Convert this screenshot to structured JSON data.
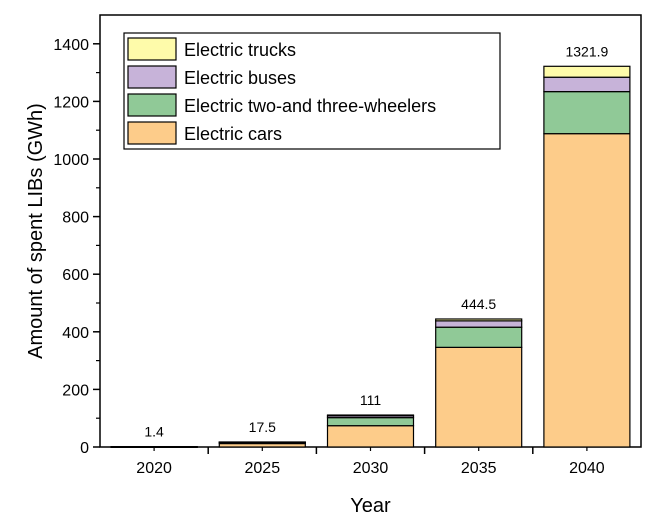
{
  "chart_data": {
    "type": "bar",
    "stacked": true,
    "categories": [
      "2020",
      "2025",
      "2030",
      "2035",
      "2040"
    ],
    "series": [
      {
        "name": "Electric cars",
        "color": "#FDCC8A",
        "values": [
          0.8,
          12,
          74,
          346,
          1088
        ]
      },
      {
        "name": "Electric two-and three-wheelers",
        "color": "#90C997",
        "values": [
          0.4,
          4,
          28,
          70,
          146
        ]
      },
      {
        "name": "Electric buses",
        "color": "#C7B3D9",
        "values": [
          0.1,
          1,
          6,
          22,
          50
        ]
      },
      {
        "name": "Electric trucks",
        "color": "#FEFBAA",
        "values": [
          0.1,
          0.5,
          3,
          6.5,
          37.9
        ]
      }
    ],
    "totals": [
      "1.4",
      "17.5",
      "111",
      "444.5",
      "1321.9"
    ],
    "total_values": [
      1.4,
      17.5,
      111,
      444.5,
      1321.9
    ],
    "xlabel": "Year",
    "ylabel": "Amount of spent LIBs (GWh)",
    "ylim": [
      0,
      1500
    ],
    "yticks": [
      0,
      200,
      400,
      600,
      800,
      1000,
      1200,
      1400
    ],
    "ytick_labels": [
      "0",
      "200",
      "400",
      "600",
      "800",
      "1000",
      "1200",
      "1400"
    ],
    "legend_order": [
      "Electric trucks",
      "Electric buses",
      "Electric two-and three-wheelers",
      "Electric cars"
    ],
    "legend_position": "top-left",
    "grid": false
  }
}
